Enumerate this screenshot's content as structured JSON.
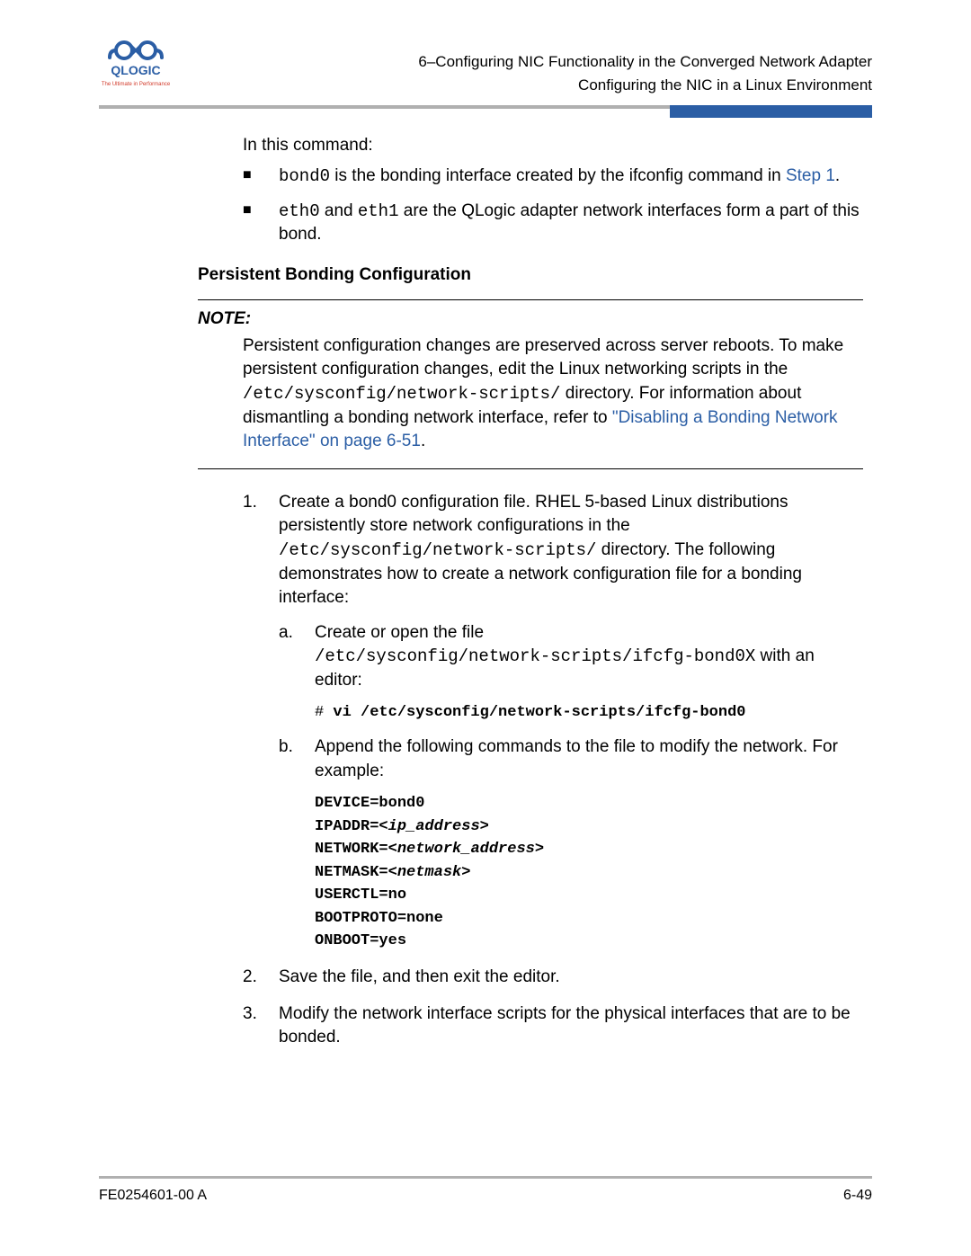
{
  "header": {
    "line1": "6–Configuring NIC Functionality in the Converged Network Adapter",
    "line2": "Configuring the NIC in a Linux Environment"
  },
  "logo": {
    "brand": "QLOGIC",
    "tagline": "The Ultimate in Performance",
    "color": "#2b5ea5",
    "tagline_color": "#d23a2a"
  },
  "body": {
    "intro": "In this command:",
    "bullets": [
      {
        "pre": "bond0",
        "mid": " is the bonding interface created by the ifconfig command in ",
        "link": "Step 1",
        "post": "."
      },
      {
        "pre": "eth0",
        "mid2_pre": " and ",
        "pre2": "eth1",
        "post": " are the QLogic adapter network interfaces form a part of this bond."
      }
    ],
    "section_heading": "Persistent Bonding Configuration",
    "note": {
      "title": "NOTE:",
      "text_a": "Persistent configuration changes are preserved across server reboots. To make persistent configuration changes, edit the Linux networking scripts in the ",
      "code_a": "/etc/sysconfig/network-scripts/",
      "text_b": " directory. For information about dismantling a bonding network interface, refer to ",
      "link": "\"Disabling a Bonding Network Interface\" on page 6-51",
      "text_c": "."
    },
    "steps": {
      "s1": {
        "num": "1.",
        "text_a": "Create a bond0 configuration file. RHEL 5-based Linux distributions persistently store network configurations in the ",
        "code_a": "/etc/sysconfig/network-scripts/",
        "text_b": " directory. The following demonstrates how to create a network configuration file for a bonding interface:",
        "a": {
          "num": "a.",
          "text_a": "Create or open the file ",
          "code_a": "/etc/sysconfig/network-scripts/ifcfg-bond0X",
          "text_b": " with an editor:",
          "cmd_prefix": "# ",
          "cmd": "vi /etc/sysconfig/network-scripts/ifcfg-bond0"
        },
        "b": {
          "num": "b.",
          "text": "Append the following commands to the file to modify the network. For example:",
          "code_lines": [
            {
              "plain": "DEVICE=bond0"
            },
            {
              "plain": "IPADDR=",
              "italic": "<ip_address>"
            },
            {
              "plain": "NETWORK=",
              "italic": "<network_address>"
            },
            {
              "plain": "NETMASK=",
              "italic": "<netmask>"
            },
            {
              "plain": "USERCTL=no"
            },
            {
              "plain": "BOOTPROTO=none"
            },
            {
              "plain": "ONBOOT=yes"
            }
          ]
        }
      },
      "s2": {
        "num": "2.",
        "text": "Save the file, and then exit the editor."
      },
      "s3": {
        "num": "3.",
        "text": "Modify the network interface scripts for the physical interfaces that are to be bonded."
      }
    }
  },
  "footer": {
    "left": "FE0254601-00 A",
    "right": "6-49"
  },
  "colors": {
    "accent": "#2b5ea5",
    "rule_gray": "#b0b0b0"
  }
}
